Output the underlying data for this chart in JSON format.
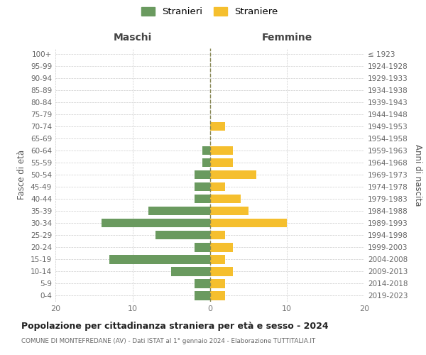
{
  "age_groups": [
    "0-4",
    "5-9",
    "10-14",
    "15-19",
    "20-24",
    "25-29",
    "30-34",
    "35-39",
    "40-44",
    "45-49",
    "50-54",
    "55-59",
    "60-64",
    "65-69",
    "70-74",
    "75-79",
    "80-84",
    "85-89",
    "90-94",
    "95-99",
    "100+"
  ],
  "birth_years": [
    "2019-2023",
    "2014-2018",
    "2009-2013",
    "2004-2008",
    "1999-2003",
    "1994-1998",
    "1989-1993",
    "1984-1988",
    "1979-1983",
    "1974-1978",
    "1969-1973",
    "1964-1968",
    "1959-1963",
    "1954-1958",
    "1949-1953",
    "1944-1948",
    "1939-1943",
    "1934-1938",
    "1929-1933",
    "1924-1928",
    "≤ 1923"
  ],
  "males": [
    2,
    2,
    5,
    13,
    2,
    7,
    14,
    8,
    2,
    2,
    2,
    1,
    1,
    0,
    0,
    0,
    0,
    0,
    0,
    0,
    0
  ],
  "females": [
    2,
    2,
    3,
    2,
    3,
    2,
    10,
    5,
    4,
    2,
    6,
    3,
    3,
    0,
    2,
    0,
    0,
    0,
    0,
    0,
    0
  ],
  "male_color": "#6a9a5f",
  "female_color": "#f5bf2e",
  "title": "Popolazione per cittadinanza straniera per età e sesso - 2024",
  "subtitle": "COMUNE DI MONTEFREDANE (AV) - Dati ISTAT al 1° gennaio 2024 - Elaborazione TUTTITALIA.IT",
  "header_left": "Maschi",
  "header_right": "Femmine",
  "ylabel_left": "Fasce di età",
  "ylabel_right": "Anni di nascita",
  "legend_males": "Stranieri",
  "legend_females": "Straniere",
  "xlim": 20,
  "background_color": "#ffffff",
  "grid_color": "#cccccc",
  "center_line_color": "#888855"
}
